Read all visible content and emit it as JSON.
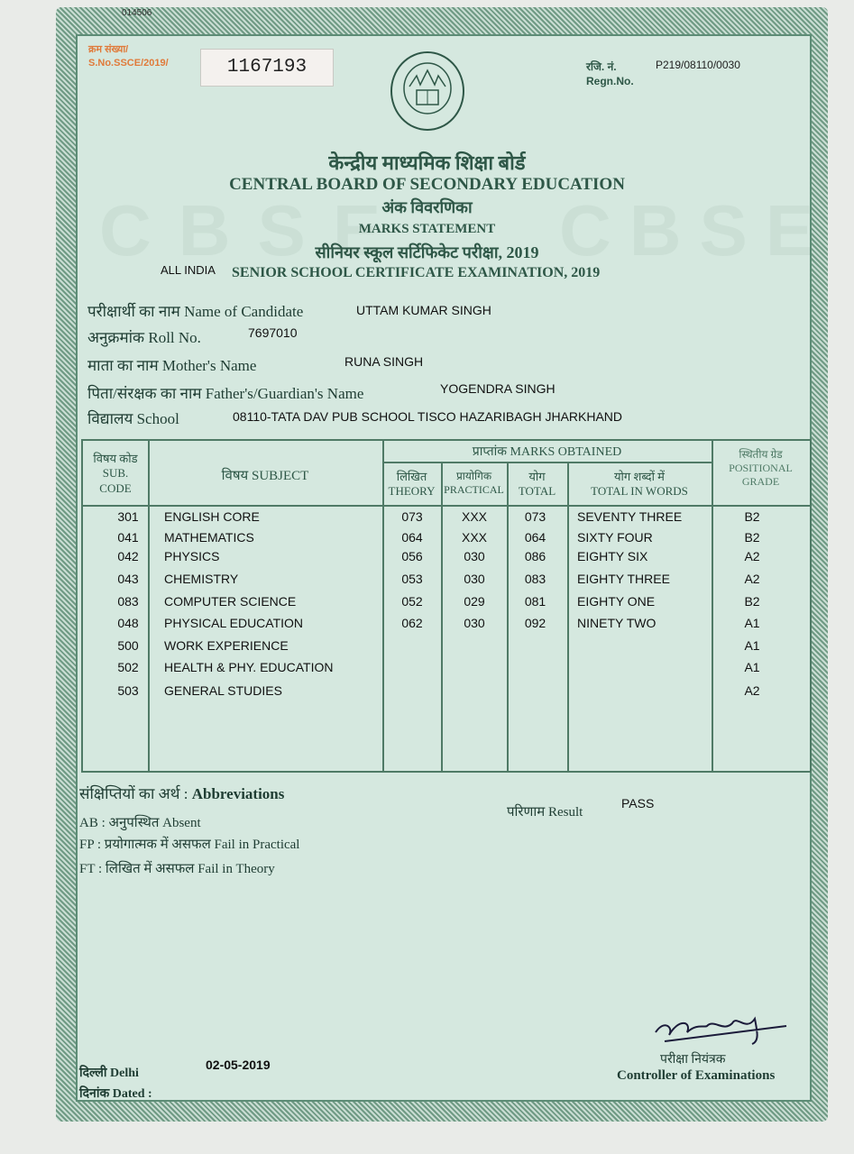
{
  "top_code": "014506",
  "serial": {
    "label_hi": "क्रम संख्या/",
    "label_en": "S.No.SSCE/2019/",
    "value": "1167193"
  },
  "regn": {
    "label_hi": "रजि. नं.",
    "label_en": "Regn.No.",
    "value": "P219/08110/0030"
  },
  "logo": {
    "text": "केन्द्रीय माध्यमिक शिक्षा बोर्ड भारत"
  },
  "title_hi": "केन्द्रीय माध्यमिक शिक्षा बोर्ड",
  "title_en": "CENTRAL BOARD OF SECONDARY EDUCATION",
  "subtitle_hi": "अंक विवरणिका",
  "subtitle_en": "MARKS STATEMENT",
  "exam_hi": "सीनियर स्कूल सर्टिफिकेट परीक्षा, 2019",
  "exam_prefix": "ALL INDIA",
  "exam_en": "SENIOR SCHOOL CERTIFICATE EXAMINATION, 2019",
  "watermark": "CBSE",
  "candidate": [
    {
      "label": "परीक्षार्थी का नाम Name of Candidate",
      "value": "UTTAM KUMAR SINGH"
    },
    {
      "label": "अनुक्रमांक Roll No.",
      "value": "7697010"
    },
    {
      "label": "माता का नाम Mother's Name",
      "value": "RUNA  SINGH"
    },
    {
      "label": "पिता/संरक्षक का नाम Father's/Guardian's Name",
      "value": "YOGENDRA SINGH"
    },
    {
      "label": "विद्यालय School",
      "value": "08110-TATA DAV PUB SCHOOL TISCO HAZARIBAGH JHARKHAND"
    }
  ],
  "table": {
    "headers": {
      "code_hi": "विषय कोड",
      "code_en": "SUB. CODE",
      "subject": "विषय SUBJECT",
      "marks": "प्राप्तांक MARKS OBTAINED",
      "theory_hi": "लिखित",
      "theory_en": "THEORY",
      "practical_hi": "प्रायोगिक",
      "practical_en": "PRACTICAL",
      "total_hi": "योग",
      "total_en": "TOTAL",
      "words_hi": "योग शब्दों में",
      "words_en": "TOTAL IN WORDS",
      "grade_hi": "स्थितीय ग्रेड",
      "grade_en": "POSITIONAL GRADE"
    },
    "rows": [
      {
        "code": "301",
        "subject": "ENGLISH CORE",
        "theory": "073",
        "practical": "XXX",
        "total": "073",
        "words": "SEVENTY THREE",
        "grade": "B2"
      },
      {
        "code": "041",
        "subject": "MATHEMATICS",
        "theory": "064",
        "practical": "XXX",
        "total": "064",
        "words": "SIXTY FOUR",
        "grade": "B2"
      },
      {
        "code": "042",
        "subject": "PHYSICS",
        "theory": "056",
        "practical": "030",
        "total": "086",
        "words": "EIGHTY SIX",
        "grade": "A2"
      },
      {
        "code": "043",
        "subject": "CHEMISTRY",
        "theory": "053",
        "practical": "030",
        "total": "083",
        "words": "EIGHTY THREE",
        "grade": "A2"
      },
      {
        "code": "083",
        "subject": "COMPUTER SCIENCE",
        "theory": "052",
        "practical": "029",
        "total": "081",
        "words": "EIGHTY ONE",
        "grade": "B2"
      },
      {
        "code": "048",
        "subject": "PHYSICAL EDUCATION",
        "theory": "062",
        "practical": "030",
        "total": "092",
        "words": "NINETY TWO",
        "grade": "A1"
      },
      {
        "code": "500",
        "subject": "WORK EXPERIENCE",
        "theory": "",
        "practical": "",
        "total": "",
        "words": "",
        "grade": "A1"
      },
      {
        "code": "502",
        "subject": "HEALTH & PHY. EDUCATION",
        "theory": "",
        "practical": "",
        "total": "",
        "words": "",
        "grade": "A1"
      },
      {
        "code": "503",
        "subject": "GENERAL STUDIES",
        "theory": "",
        "practical": "",
        "total": "",
        "words": "",
        "grade": "A2"
      }
    ]
  },
  "abbreviations": {
    "title_hi": "संक्षिप्तियों का अर्थ :",
    "title_en": "Abbreviations",
    "items": [
      "AB : अनुपस्थित Absent",
      "FP : प्रयोगात्मक में असफल Fail in Practical",
      "FT : लिखित में असफल Fail in Theory"
    ]
  },
  "result": {
    "label": "परिणाम Result",
    "value": "PASS"
  },
  "place": "दिल्ली Delhi",
  "dated_label": "दिनांक Dated :",
  "date": "02-05-2019",
  "controller_hi": "परीक्षा नियंत्रक",
  "controller_en": "Controller of Examinations",
  "colors": {
    "paper": "#d5e8df",
    "border": "#5d8c76",
    "ink": "#2e5747",
    "serial": "#e07a3a"
  }
}
